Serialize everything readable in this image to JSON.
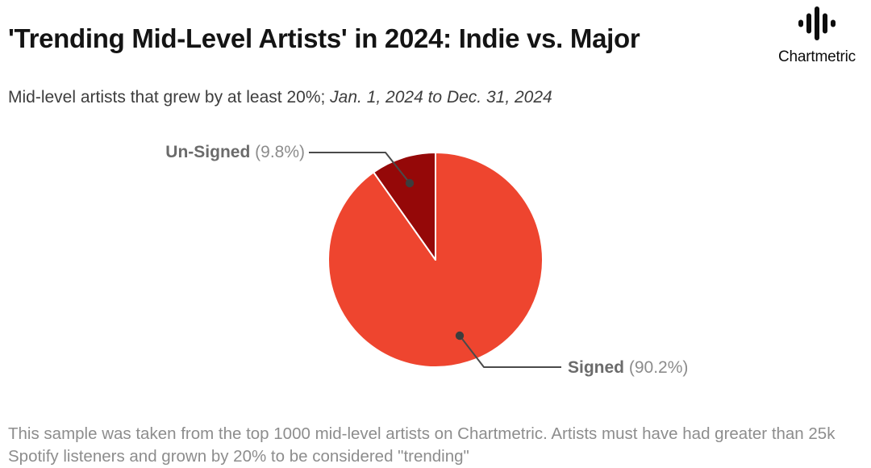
{
  "header": {
    "title": "'Trending Mid-Level Artists' in 2024: Indie vs. Major",
    "logo_text": "Chartmetric",
    "logo_icon": "waveform-icon"
  },
  "subtitle": {
    "plain": "Mid-level artists that grew by at least 20%; ",
    "italic": "Jan. 1, 2024 to Dec. 31, 2024"
  },
  "chart_data": {
    "type": "pie",
    "title": "'Trending Mid-Level Artists' in 2024: Indie vs. Major",
    "units": "percent",
    "start_angle_deg": 0,
    "direction": "clockwise",
    "legend_position": "callout-labels",
    "slice_border_color": "#ffffff",
    "slices": [
      {
        "label": "Signed",
        "value": 90.2,
        "display": "(90.2%)",
        "color": "#ee452f"
      },
      {
        "label": "Un-Signed",
        "value": 9.8,
        "display": "(9.8%)",
        "color": "#950808"
      }
    ]
  },
  "footer": {
    "note": "This sample was taken from the top 1000 mid-level artists on Chartmetric. Artists must have had greater than 25k Spotify listeners and grown by 20% to be considered \"trending\""
  },
  "colors": {
    "signed_slice": "#ee452f",
    "unsigned_slice": "#950808",
    "callout_line": "#4a4a4a",
    "callout_dot": "#3d3d3d",
    "label_name_text": "#6b6b6b",
    "label_pct_text": "#8c8c8c",
    "title_text": "#141414",
    "subtitle_text": "#3d3d3d",
    "footer_text": "#8d8d8d"
  }
}
